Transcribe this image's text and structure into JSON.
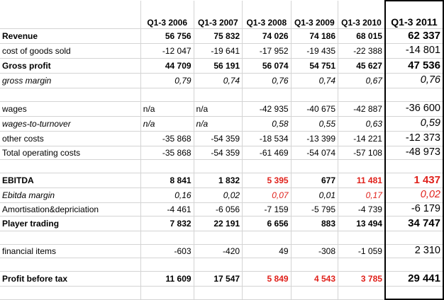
{
  "header": [
    "",
    "Q1-3 2006",
    "Q1-3 2007",
    "Q1-3 2008",
    "Q1-3 2009",
    "Q1-3 2010",
    "Q1-3 2011"
  ],
  "rows": [
    {
      "label": "Revenue",
      "style": "bold",
      "values": [
        "56 756",
        "75 832",
        "74 026",
        "74 186",
        "68 015",
        "62 337"
      ]
    },
    {
      "label": "cost of goods sold",
      "style": "",
      "values": [
        "-12 047",
        "-19 641",
        "-17 952",
        "-19 435",
        "-22 388",
        "-14 801"
      ]
    },
    {
      "label": "Gross profit",
      "style": "bold",
      "values": [
        "44 709",
        "56 191",
        "56 074",
        "54 751",
        "45 627",
        "47 536"
      ]
    },
    {
      "label": "gross margin",
      "style": "ital",
      "values": [
        "0,79",
        "0,74",
        "0,76",
        "0,74",
        "0,67",
        "0,76"
      ]
    },
    {
      "label": "",
      "style": "",
      "values": [
        "",
        "",
        "",
        "",
        "",
        ""
      ]
    },
    {
      "label": "wages",
      "style": "",
      "values": [
        "n/a",
        "n/a",
        "-42 935",
        "-40 675",
        "-42 887",
        "-36 600"
      ]
    },
    {
      "label": "wages-to-turnover",
      "style": "ital",
      "values": [
        "n/a",
        "n/a",
        "0,58",
        "0,55",
        "0,63",
        "0,59"
      ]
    },
    {
      "label": "other costs",
      "style": "",
      "values": [
        "-35 868",
        "-54 359",
        "-18 534",
        "-13 399",
        "-14 221",
        "-12 373"
      ]
    },
    {
      "label": "Total operating costs",
      "style": "",
      "values": [
        "-35 868",
        "-54 359",
        "-61 469",
        "-54 074",
        "-57 108",
        "-48 973"
      ]
    },
    {
      "label": "",
      "style": "",
      "values": [
        "",
        "",
        "",
        "",
        "",
        ""
      ]
    },
    {
      "label": "EBITDA",
      "style": "bold",
      "values": [
        "8 841",
        "1 832",
        "5 395",
        "677",
        "11 481",
        "1 437"
      ]
    },
    {
      "label": "Ebitda margin",
      "style": "ital",
      "values": [
        "0,16",
        "0,02",
        "0,07",
        "0,01",
        "0,17",
        "0,02"
      ]
    },
    {
      "label": "Amortisation&depriciation",
      "style": "",
      "values": [
        "-4 461",
        "-6 056",
        "-7 159",
        "-5 795",
        "-4 739",
        "-6 179"
      ]
    },
    {
      "label": "Player trading",
      "style": "bold",
      "values": [
        "7 832",
        "22 191",
        "6 656",
        "883",
        "13 494",
        "34 747"
      ]
    },
    {
      "label": "",
      "style": "",
      "values": [
        "",
        "",
        "",
        "",
        "",
        ""
      ]
    },
    {
      "label": "financial items",
      "style": "",
      "values": [
        "-603",
        "-420",
        "49",
        "-308",
        "-1 059",
        "2 310"
      ]
    },
    {
      "label": "",
      "style": "",
      "values": [
        "",
        "",
        "",
        "",
        "",
        ""
      ]
    },
    {
      "label": "Profit before tax",
      "style": "bold",
      "values": [
        "11 609",
        "17 547",
        "5 849",
        "4 543",
        "3 785",
        "29 441"
      ]
    },
    {
      "label": "",
      "style": "",
      "values": [
        "",
        "",
        "",
        "",
        "",
        ""
      ]
    }
  ],
  "colors": {
    "negative_highlight": "#e0201a"
  }
}
